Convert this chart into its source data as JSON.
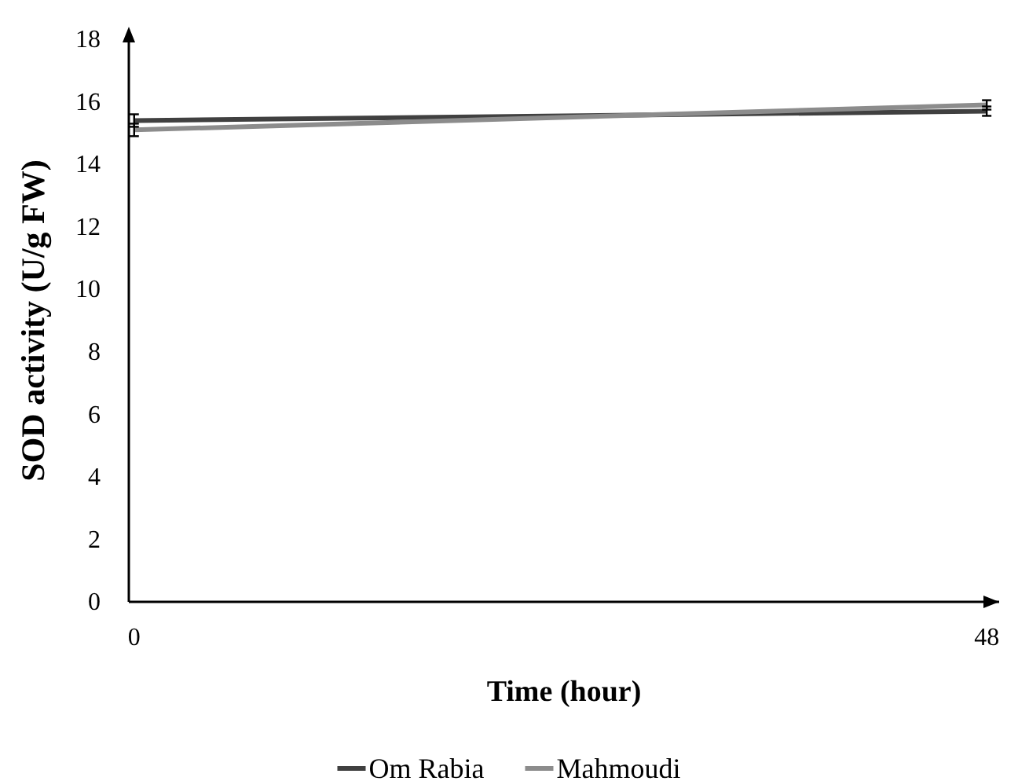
{
  "chart_data": {
    "type": "line",
    "xlabel": "Time (hour)",
    "ylabel": "SOD activity (U/g FW)",
    "x": [
      0,
      48
    ],
    "xlim": [
      -0.3,
      48.7
    ],
    "xticks": [
      0,
      48
    ],
    "ylim": [
      0,
      18
    ],
    "yticks": [
      0,
      2,
      4,
      6,
      8,
      10,
      12,
      14,
      16,
      18
    ],
    "grid": false,
    "legend": "bottom",
    "marker": "none",
    "line_style": "solid",
    "series": [
      {
        "name": "Om Rabia",
        "color": "#404040",
        "values": [
          15.4,
          15.7
        ],
        "errors": [
          0.2,
          0.15
        ]
      },
      {
        "name": "Mahmoudi",
        "color": "#8c8c8c",
        "values": [
          15.1,
          15.9
        ],
        "errors": [
          0.2,
          0.15
        ]
      }
    ]
  }
}
